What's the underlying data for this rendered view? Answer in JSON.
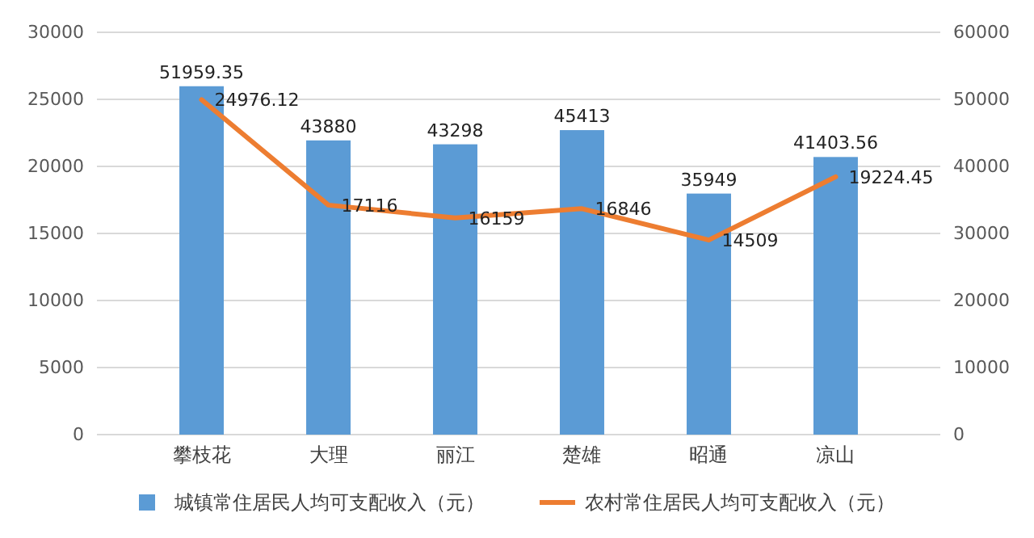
{
  "chart_data": {
    "type": "bar",
    "categories": [
      "攀枝花",
      "大理",
      "丽江",
      "楚雄",
      "昭通",
      "凉山"
    ],
    "series": [
      {
        "name": "城镇常住居民人均可支配收入（元）",
        "axis": "y2",
        "color": "#5b9bd5",
        "values": [
          51959.35,
          43880,
          43298,
          45413,
          35949,
          41403.56
        ]
      },
      {
        "name": "农村常住居民人均可支配收入（元）",
        "type": "line",
        "axis": "y",
        "color": "#ed7d31",
        "values": [
          24976.12,
          17116,
          16159,
          16846,
          14509,
          19224.45
        ]
      }
    ],
    "ylim": [
      0,
      30000
    ],
    "yticks": [
      0,
      5000,
      10000,
      15000,
      20000,
      25000,
      30000
    ],
    "y2lim": [
      0,
      60000
    ],
    "y2ticks": [
      0,
      10000,
      20000,
      30000,
      40000,
      50000,
      60000
    ],
    "grid": "y",
    "legend": "bottom",
    "data_labels": true,
    "marker": "none",
    "line_style": "solid"
  }
}
